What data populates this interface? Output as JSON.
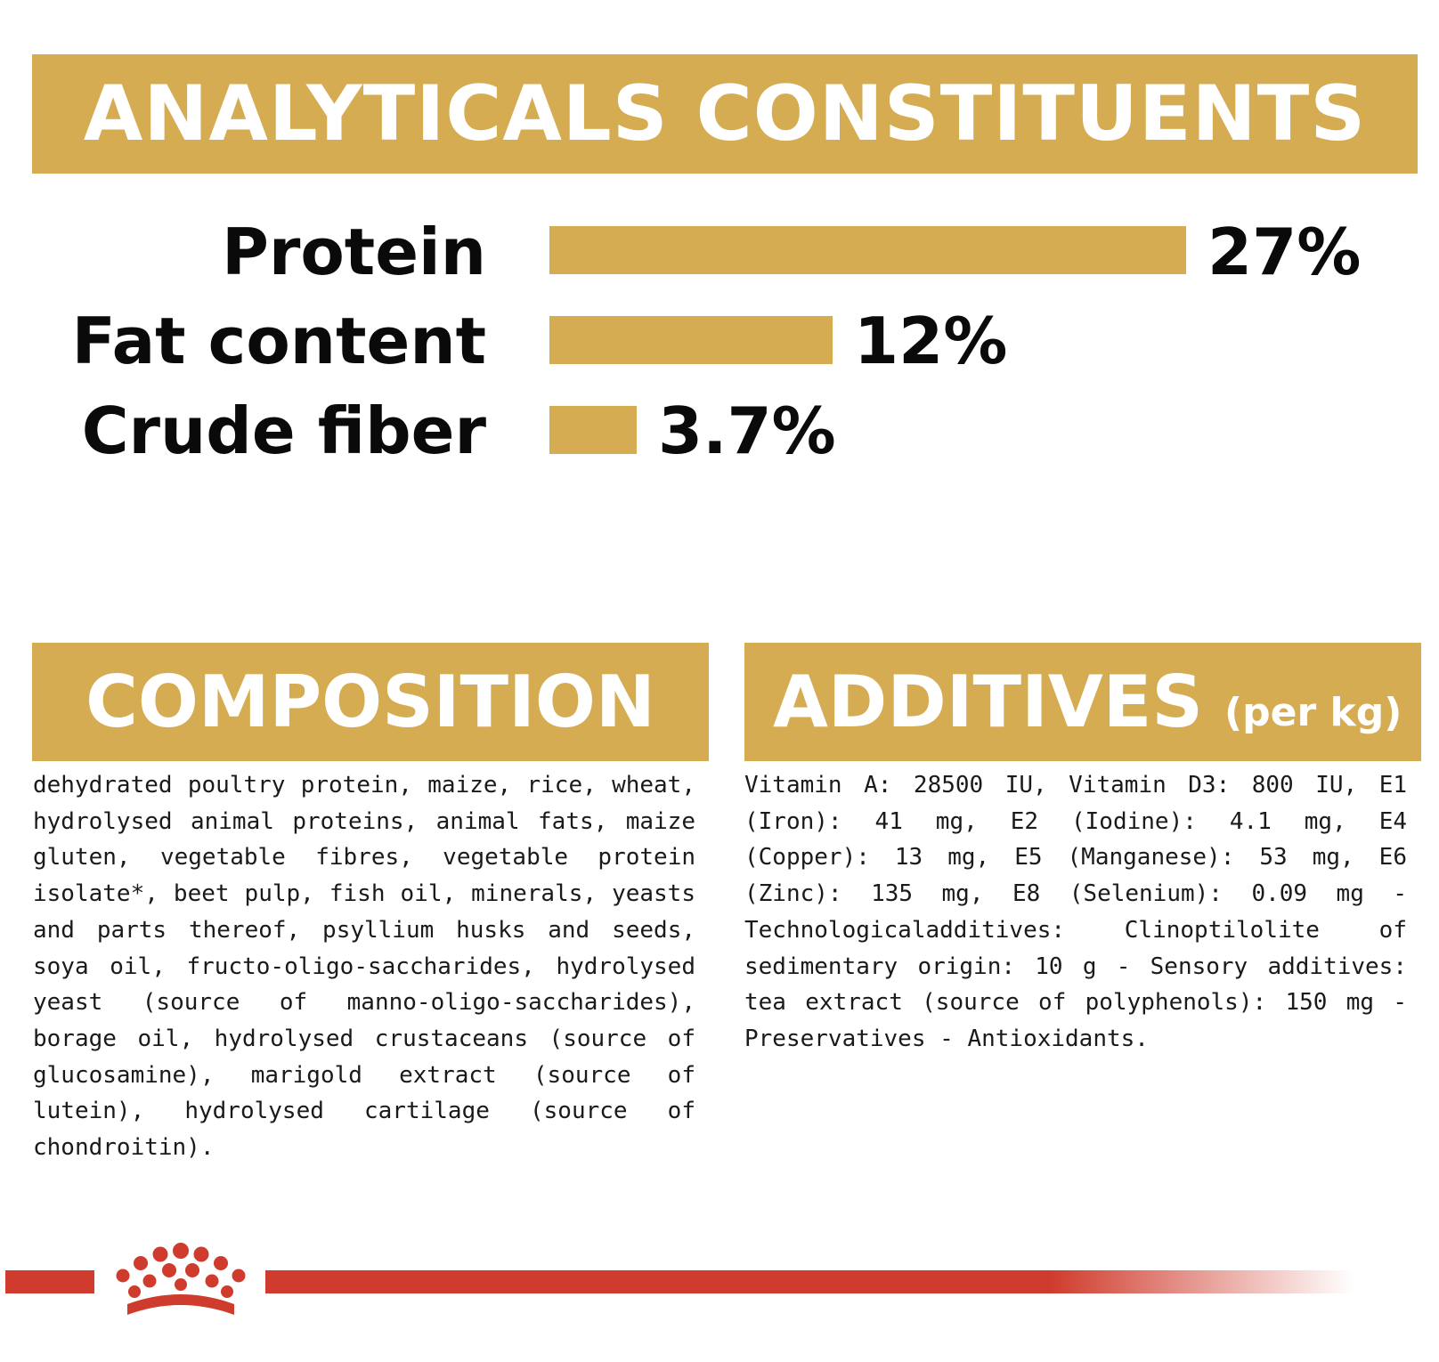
{
  "analytics": {
    "heading": "ANALYTICALS CONSTITUENTS",
    "rows": [
      {
        "label": "Protein",
        "value_text": "27%",
        "value": 27
      },
      {
        "label": "Fat content",
        "value_text": "12%",
        "value": 12
      },
      {
        "label": "Crude fiber",
        "value_text": "3.7%",
        "value": 3.7
      }
    ]
  },
  "composition": {
    "heading": "COMPOSITION",
    "text": "dehydrated poultry protein, maize, rice, wheat, hydrolysed animal proteins, animal fats, maize gluten, vegetable fibres, vegetable protein isolate*, beet pulp, fish oil, minerals, yeasts and parts thereof, psyllium husks and seeds, soya oil, fructo-oligo-saccharides, hydrolysed yeast (source of manno-oligo-saccharides), borage oil, hydrolysed crustaceans (source of glucosamine), marigold extract (source of lutein), hydrolysed cartilage (source of chondroitin)."
  },
  "additives": {
    "heading": "ADDITIVES",
    "heading_sub": "(per kg)",
    "text": "Vitamin A: 28500 IU, Vitamin D3: 800 IU, E1 (Iron): 41 mg, E2 (Iodine): 4.1 mg, E4 (Copper): 13 mg, E5 (Manganese): 53 mg, E6 (Zinc): 135 mg, E8 (Selenium): 0.09 mg - Technologicaladditives: Clinoptilolite of sedimentary origin: 10 g - Sensory additives: tea extract (source of polyphenols): 150 mg - Preservatives - Antioxidants."
  },
  "colors": {
    "band": "#d6ac52",
    "brand_red": "#cf3b2c",
    "text": "#1a1a1a"
  },
  "logo": {
    "icon": "royal-canin-crown-icon"
  }
}
